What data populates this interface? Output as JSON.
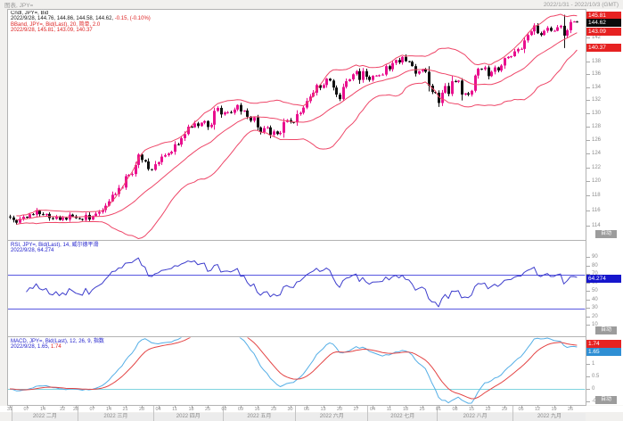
{
  "window": {
    "title_left": "图表, JPY=",
    "title_right": "2022/1/31 - 2022/10/3 (GMT)"
  },
  "colors": {
    "frame": "#b3b3b3",
    "pane_bg": "#ffffff",
    "candle_up": "#e90f8e",
    "candle_down": "#111111",
    "bband": "#ee4668",
    "rsi_line": "#3c3ccc",
    "rsi_level": "#5858e0",
    "rsi_badge": "#1616cc",
    "macd_line": "#54aee6",
    "macd_signal": "#e34444",
    "macd_zero": "#7fd4e0",
    "badge_red": "#e62222",
    "badge_black": "#0a0a0a",
    "badge_blue": "#2f8fd4",
    "text_black": "#1a1a1a",
    "text_red": "#dd2222",
    "text_blue": "#2222cc"
  },
  "y_axis": {
    "auto_label": "自动"
  },
  "main_pane": {
    "legend": [
      {
        "segments": [
          {
            "text": "Cndl, JPY=, Bid",
            "color": "#1a1a1a"
          }
        ]
      },
      {
        "segments": [
          {
            "text": "2022/9/28, 144.76, 144.86, 144.58, 144.62, ",
            "color": "#1a1a1a"
          },
          {
            "text": "-0.15, (-0.10%)",
            "color": "#dd2222"
          }
        ]
      },
      {
        "segments": [
          {
            "text": "BBand, JPY=, Bid(Last), 20, 简单, 2.0",
            "color": "#dd2222"
          }
        ]
      },
      {
        "segments": [
          {
            "text": "2022/9/28, 145.81, 143.09, 140.37",
            "color": "#dd2222"
          }
        ]
      }
    ],
    "badges": [
      {
        "text": "145.81",
        "value": 145.81,
        "bg": "#e62222"
      },
      {
        "text": "144.62",
        "value": 144.62,
        "bg": "#0a0a0a"
      },
      {
        "text": "143.09",
        "value": 143.09,
        "bg": "#e62222"
      },
      {
        "text": "140.37",
        "value": 140.37,
        "bg": "#e62222"
      }
    ],
    "ticks": [
      144,
      142,
      140,
      138,
      136,
      134,
      132,
      130,
      128,
      126,
      124,
      122,
      120,
      118,
      116,
      114
    ]
  },
  "rsi_pane": {
    "legend": [
      {
        "segments": [
          {
            "text": "RSI, JPY=, Bid(Last), 14, 威尔德平滑",
            "color": "#2222cc"
          }
        ]
      },
      {
        "segments": [
          {
            "text": "2022/9/28, 64.274",
            "color": "#2222cc"
          }
        ]
      }
    ],
    "badge": {
      "text": "64.274",
      "value": 64.274,
      "bg": "#1616cc"
    },
    "levels": [
      70,
      30
    ],
    "ticks": [
      90,
      80,
      70,
      60,
      50,
      40,
      30,
      20,
      10
    ]
  },
  "macd_pane": {
    "legend": [
      {
        "segments": [
          {
            "text": "MACD, JPY=, Bid(Last), 12, 26, 9, 指数",
            "color": "#2222cc"
          }
        ]
      },
      {
        "segments": [
          {
            "text": "2022/9/28, 1.65, ",
            "color": "#2222cc"
          },
          {
            "text": "1.74",
            "color": "#dd2222"
          }
        ]
      }
    ],
    "badges": [
      {
        "text": "1.74",
        "value": 1.74,
        "bg": "#e62222"
      },
      {
        "text": "1.65",
        "value": 1.65,
        "bg": "#2f8fd4"
      }
    ],
    "ticks": [
      1.5,
      1,
      0.5,
      0,
      -0.5
    ]
  },
  "x_axis": {
    "day_labels": [
      [
        "31",
        0
      ],
      [
        "07",
        5
      ],
      [
        "14",
        10
      ],
      [
        "22",
        16
      ],
      [
        "28",
        20
      ],
      [
        "07",
        25
      ],
      [
        "14",
        30
      ],
      [
        "21",
        35
      ],
      [
        "28",
        40
      ],
      [
        "04",
        45
      ],
      [
        "11",
        50
      ],
      [
        "18",
        55
      ],
      [
        "25",
        60
      ],
      [
        "02",
        65
      ],
      [
        "09",
        70
      ],
      [
        "16",
        75
      ],
      [
        "23",
        80
      ],
      [
        "30",
        85
      ],
      [
        "06",
        90
      ],
      [
        "13",
        95
      ],
      [
        "20",
        100
      ],
      [
        "27",
        105
      ],
      [
        "04",
        110
      ],
      [
        "11",
        115
      ],
      [
        "18",
        120
      ],
      [
        "25",
        125
      ],
      [
        "01",
        130
      ],
      [
        "08",
        135
      ],
      [
        "15",
        140
      ],
      [
        "22",
        145
      ],
      [
        "29",
        150
      ],
      [
        "05",
        155
      ],
      [
        "12",
        160
      ],
      [
        "19",
        165
      ],
      [
        "26",
        170
      ]
    ],
    "months": [
      [
        "2022 二月",
        1,
        20
      ],
      [
        "2022 三月",
        21,
        43
      ],
      [
        "2022 四月",
        44,
        64
      ],
      [
        "2022 五月",
        65,
        86
      ],
      [
        "2022 六月",
        87,
        108
      ],
      [
        "2022 七月",
        109,
        129
      ],
      [
        "2022 八月",
        130,
        152
      ],
      [
        "2022 九月",
        153,
        174
      ]
    ]
  },
  "chart_data": {
    "type": "candlestick",
    "symbol": "JPY=",
    "field": "Bid",
    "frequency": "daily",
    "start_date": "2022-01-31",
    "end_date": "2022-09-28",
    "yscale_main": "log",
    "ylim_main": [
      112.2,
      146.9
    ],
    "close": [
      115.11,
      114.76,
      114.4,
      114.92,
      115.2,
      115.08,
      115.54,
      115.48,
      116.02,
      115.55,
      115.42,
      115.58,
      115.01,
      114.91,
      115.22,
      114.78,
      115.06,
      114.82,
      115.48,
      115.25,
      115.0,
      114.9,
      114.78,
      115.45,
      114.82,
      115.3,
      115.62,
      115.84,
      116.1,
      116.7,
      117.3,
      118.2,
      118.3,
      119.15,
      119.2,
      120.8,
      121.0,
      121.1,
      122.4,
      123.9,
      123.1,
      122.9,
      121.8,
      121.7,
      122.5,
      122.8,
      123.6,
      123.8,
      124.05,
      124.3,
      125.4,
      125.35,
      126.3,
      126.9,
      128.0,
      127.9,
      128.5,
      128.1,
      128.6,
      128.85,
      127.95,
      128.3,
      130.4,
      130.85,
      129.85,
      130.15,
      130.2,
      130.1,
      130.6,
      131.3,
      130.3,
      130.45,
      129.5,
      128.9,
      129.4,
      127.9,
      127.2,
      127.8,
      127.9,
      126.8,
      127.3,
      126.9,
      127.1,
      128.7,
      129.0,
      128.7,
      128.65,
      129.9,
      130.1,
      130.9,
      131.9,
      132.6,
      133.2,
      134.4,
      133.95,
      134.4,
      135.4,
      135.1,
      134.0,
      132.9,
      132.2,
      134.1,
      135.0,
      135.3,
      136.1,
      136.6,
      135.2,
      136.6,
      135.7,
      135.2,
      135.85,
      135.9,
      135.95,
      136.05,
      137.4,
      136.9,
      137.9,
      138.4,
      138.0,
      138.9,
      138.2,
      138.1,
      137.4,
      136.2,
      136.6,
      136.9,
      136.5,
      134.3,
      133.3,
      133.2,
      131.6,
      133.2,
      134.25,
      133.0,
      135.0,
      134.9,
      135.1,
      132.9,
      133.1,
      132.9,
      133.5,
      135.9,
      137.0,
      136.9,
      137.2,
      135.8,
      136.5,
      137.2,
      136.7,
      137.5,
      138.7,
      138.9,
      139.0,
      139.8,
      140.2,
      140.2,
      141.6,
      142.5,
      143.1,
      144.1,
      142.8,
      142.5,
      143.2,
      143.7,
      143.2,
      143.2,
      143.8,
      144.05,
      142.4,
      143.3,
      144.7,
      144.76,
      144.62
    ],
    "last_candle": {
      "date": "2022/9/28",
      "open": 144.76,
      "high": 144.86,
      "low": 144.58,
      "close": 144.62,
      "change": "-0.15",
      "change_pct": "(-0.10%)"
    },
    "wick_overrides": [
      {
        "i": 168,
        "high": 145.9,
        "low": 140.35
      },
      {
        "i": 172,
        "open": 144.76,
        "high": 144.86,
        "low": 144.58,
        "close": 144.62
      }
    ],
    "indicators": {
      "bband": {
        "period": 20,
        "ma_type": "简单",
        "width": 2.0,
        "last": {
          "upper": 145.81,
          "mid": 143.09,
          "lower": 140.37
        }
      },
      "rsi": {
        "period": 14,
        "smoothing": "威尔德平滑",
        "last": 64.274,
        "levels": [
          70,
          30
        ]
      },
      "macd": {
        "fast": 12,
        "slow": 26,
        "signal": 9,
        "method": "指数",
        "last_macd": 1.65,
        "last_signal": 1.74
      }
    }
  }
}
